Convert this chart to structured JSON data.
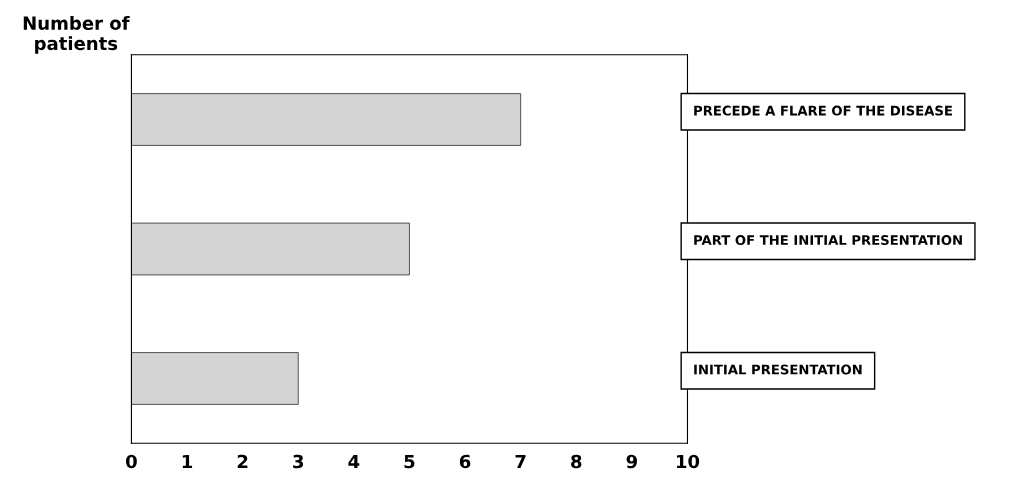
{
  "chart_data": {
    "type": "bar",
    "orientation": "horizontal",
    "ylabel": "Number of\npatients",
    "categories": [
      "PRECEDE A FLARE OF THE DISEASE",
      "PART OF THE INITIAL PRESENTATION",
      "INITIAL PRESENTATION"
    ],
    "values": [
      7,
      5,
      3
    ],
    "color": "#d4d4d4",
    "xlim": [
      0,
      10
    ],
    "xticks": [
      0,
      1,
      2,
      3,
      4,
      5,
      6,
      7,
      8,
      9,
      10
    ],
    "grid": false,
    "legend": false
  }
}
